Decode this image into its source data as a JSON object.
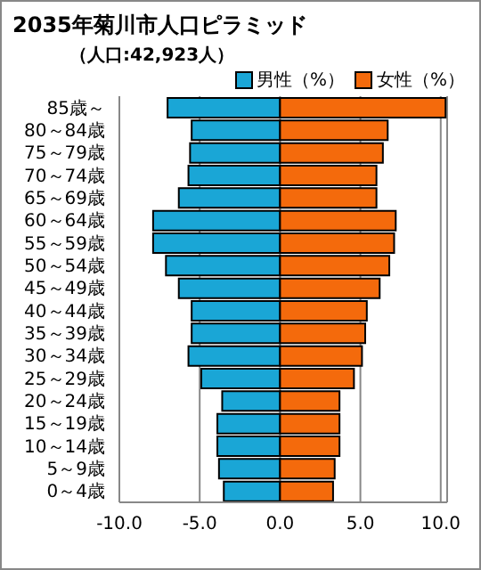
{
  "chart_data": {
    "type": "bar",
    "orientation": "horizontal",
    "stacked": true,
    "title": "2035年菊川市人口ピラミッド",
    "subtitle": "（人口:42,923人）",
    "categories": [
      "85歳～",
      "80～84歳",
      "75～79歳",
      "70～74歳",
      "65～69歳",
      "60～64歳",
      "55～59歳",
      "50～54歳",
      "45～49歳",
      "40～44歳",
      "35～39歳",
      "30～34歳",
      "25～29歳",
      "20～24歳",
      "15～19歳",
      "10～14歳",
      "5～9歳",
      "0～4歳"
    ],
    "series": [
      {
        "name": "男性（%）",
        "color": "#1aa6d6",
        "values": [
          -7.0,
          -5.5,
          -5.6,
          -5.7,
          -6.3,
          -7.9,
          -7.9,
          -7.1,
          -6.3,
          -5.5,
          -5.5,
          -5.7,
          -4.9,
          -3.6,
          -3.9,
          -3.9,
          -3.8,
          -3.5
        ]
      },
      {
        "name": "女性（%）",
        "color": "#f46a0c",
        "values": [
          10.3,
          6.7,
          6.4,
          6.0,
          6.0,
          7.2,
          7.1,
          6.8,
          6.2,
          5.4,
          5.3,
          5.1,
          4.6,
          3.7,
          3.7,
          3.7,
          3.4,
          3.3
        ]
      }
    ],
    "xlim": [
      -10,
      10.4
    ],
    "xticks": [
      {
        "value": -10,
        "label": "-10.0"
      },
      {
        "value": -5,
        "label": "-5.0"
      },
      {
        "value": 0,
        "label": "0.0"
      },
      {
        "value": 5,
        "label": "5.0"
      },
      {
        "value": 10,
        "label": "10.0"
      }
    ],
    "grid": "x",
    "legend": "top right"
  }
}
